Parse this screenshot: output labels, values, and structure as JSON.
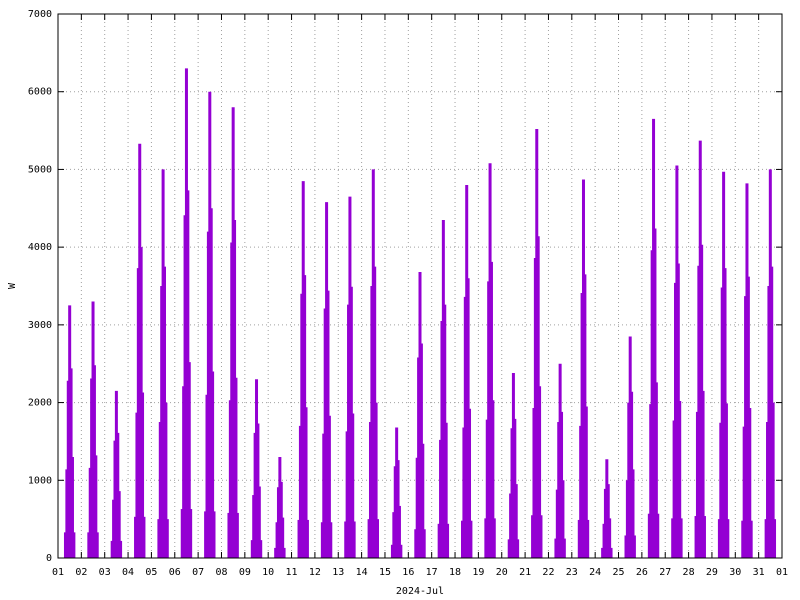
{
  "chart_data": {
    "type": "impulses",
    "xlabel": "2024-Jul",
    "ylabel": "W",
    "color": "#9400d3",
    "grid": true,
    "xlim": [
      1,
      32
    ],
    "ylim": [
      0,
      7000
    ],
    "yticks": [
      0,
      1000,
      2000,
      3000,
      4000,
      5000,
      6000,
      7000
    ],
    "xticks": [
      {
        "value": 1,
        "label": "01"
      },
      {
        "value": 2,
        "label": "02"
      },
      {
        "value": 3,
        "label": "03"
      },
      {
        "value": 4,
        "label": "04"
      },
      {
        "value": 5,
        "label": "05"
      },
      {
        "value": 6,
        "label": "06"
      },
      {
        "value": 7,
        "label": "07"
      },
      {
        "value": 8,
        "label": "08"
      },
      {
        "value": 9,
        "label": "09"
      },
      {
        "value": 10,
        "label": "10"
      },
      {
        "value": 11,
        "label": "11"
      },
      {
        "value": 12,
        "label": "12"
      },
      {
        "value": 13,
        "label": "13"
      },
      {
        "value": 14,
        "label": "14"
      },
      {
        "value": 15,
        "label": "15"
      },
      {
        "value": 16,
        "label": "16"
      },
      {
        "value": 17,
        "label": "17"
      },
      {
        "value": 18,
        "label": "18"
      },
      {
        "value": 19,
        "label": "19"
      },
      {
        "value": 20,
        "label": "20"
      },
      {
        "value": 21,
        "label": "21"
      },
      {
        "value": 22,
        "label": "22"
      },
      {
        "value": 23,
        "label": "23"
      },
      {
        "value": 24,
        "label": "24"
      },
      {
        "value": 25,
        "label": "25"
      },
      {
        "value": 26,
        "label": "26"
      },
      {
        "value": 27,
        "label": "27"
      },
      {
        "value": 28,
        "label": "28"
      },
      {
        "value": 29,
        "label": "29"
      },
      {
        "value": 30,
        "label": "30"
      },
      {
        "value": 31,
        "label": "31"
      },
      {
        "value": 32,
        "label": "01"
      }
    ],
    "x": [
      1.32,
      1.38,
      1.44,
      1.5,
      1.56,
      1.62,
      1.68,
      2.32,
      2.38,
      2.44,
      2.5,
      2.56,
      2.62,
      2.68,
      3.32,
      3.38,
      3.44,
      3.5,
      3.56,
      3.62,
      3.68,
      4.32,
      4.38,
      4.44,
      4.5,
      4.56,
      4.62,
      4.68,
      5.32,
      5.38,
      5.44,
      5.5,
      5.56,
      5.62,
      5.68,
      6.32,
      6.38,
      6.44,
      6.5,
      6.56,
      6.62,
      6.68,
      7.32,
      7.38,
      7.44,
      7.5,
      7.56,
      7.62,
      7.68,
      8.32,
      8.38,
      8.44,
      8.5,
      8.56,
      8.62,
      8.68,
      9.32,
      9.38,
      9.44,
      9.5,
      9.56,
      9.62,
      9.68,
      10.32,
      10.38,
      10.44,
      10.5,
      10.56,
      10.62,
      10.68,
      11.32,
      11.38,
      11.44,
      11.5,
      11.56,
      11.62,
      11.68,
      12.32,
      12.38,
      12.44,
      12.5,
      12.56,
      12.62,
      12.68,
      13.32,
      13.38,
      13.44,
      13.5,
      13.56,
      13.62,
      13.68,
      14.32,
      14.38,
      14.44,
      14.5,
      14.56,
      14.62,
      14.68,
      15.32,
      15.38,
      15.44,
      15.5,
      15.56,
      15.62,
      15.68,
      16.32,
      16.38,
      16.44,
      16.5,
      16.56,
      16.62,
      16.68,
      17.32,
      17.38,
      17.44,
      17.5,
      17.56,
      17.62,
      17.68,
      18.32,
      18.38,
      18.44,
      18.5,
      18.56,
      18.62,
      18.68,
      19.32,
      19.38,
      19.44,
      19.5,
      19.56,
      19.62,
      19.68,
      20.32,
      20.38,
      20.44,
      20.5,
      20.56,
      20.62,
      20.68,
      21.32,
      21.38,
      21.44,
      21.5,
      21.56,
      21.62,
      21.68,
      22.32,
      22.38,
      22.44,
      22.5,
      22.56,
      22.62,
      22.68,
      23.32,
      23.38,
      23.44,
      23.5,
      23.56,
      23.62,
      23.68,
      24.32,
      24.38,
      24.44,
      24.5,
      24.56,
      24.62,
      24.68,
      25.32,
      25.38,
      25.44,
      25.5,
      25.56,
      25.62,
      25.68,
      26.32,
      26.38,
      26.44,
      26.5,
      26.56,
      26.62,
      26.68,
      27.32,
      27.38,
      27.44,
      27.5,
      27.56,
      27.62,
      27.68,
      28.32,
      28.38,
      28.44,
      28.5,
      28.56,
      28.62,
      28.68,
      29.32,
      29.38,
      29.44,
      29.5,
      29.56,
      29.62,
      29.68,
      30.32,
      30.38,
      30.44,
      30.5,
      30.56,
      30.62,
      30.68,
      31.32,
      31.38,
      31.44,
      31.5,
      31.56,
      31.62,
      31.68
    ],
    "values": [
      330,
      1140,
      2280,
      3250,
      2440,
      1300,
      330,
      330,
      1160,
      2310,
      3300,
      2480,
      1320,
      330,
      220,
      750,
      1510,
      2150,
      1610,
      860,
      220,
      530,
      1870,
      3730,
      5330,
      4000,
      2130,
      530,
      500,
      1750,
      3500,
      5000,
      3750,
      2000,
      500,
      630,
      2210,
      4410,
      6300,
      4730,
      2520,
      630,
      600,
      2100,
      4200,
      6000,
      4500,
      2400,
      600,
      580,
      2030,
      4060,
      5800,
      4350,
      2320,
      580,
      230,
      810,
      1610,
      2300,
      1730,
      920,
      230,
      130,
      460,
      910,
      1300,
      980,
      520,
      130,
      490,
      1700,
      3400,
      4850,
      3640,
      1940,
      490,
      460,
      1600,
      3210,
      4580,
      3440,
      1830,
      460,
      470,
      1630,
      3260,
      4650,
      3490,
      1860,
      470,
      500,
      1750,
      3500,
      5000,
      3750,
      2000,
      500,
      170,
      590,
      1180,
      1680,
      1260,
      670,
      170,
      370,
      1290,
      2580,
      3680,
      2760,
      1470,
      370,
      440,
      1520,
      3050,
      4350,
      3260,
      1740,
      440,
      480,
      1680,
      3360,
      4800,
      3600,
      1920,
      480,
      510,
      1780,
      3560,
      5080,
      3810,
      2030,
      510,
      240,
      830,
      1670,
      2380,
      1790,
      950,
      240,
      550,
      1930,
      3860,
      5520,
      4140,
      2210,
      550,
      250,
      880,
      1750,
      2500,
      1880,
      1000,
      250,
      490,
      1700,
      3410,
      4870,
      3650,
      1950,
      490,
      130,
      440,
      890,
      1270,
      950,
      510,
      130,
      290,
      1000,
      2000,
      2850,
      2140,
      1140,
      290,
      570,
      1980,
      3960,
      5650,
      4240,
      2260,
      570,
      510,
      1770,
      3540,
      5050,
      3790,
      2020,
      510,
      540,
      1880,
      3760,
      5370,
      4030,
      2150,
      540,
      500,
      1740,
      3480,
      4970,
      3730,
      1990,
      500,
      480,
      1690,
      3370,
      4820,
      3620,
      1930,
      480,
      500,
      1750,
      3500,
      5000,
      3750,
      2000,
      500
    ]
  }
}
